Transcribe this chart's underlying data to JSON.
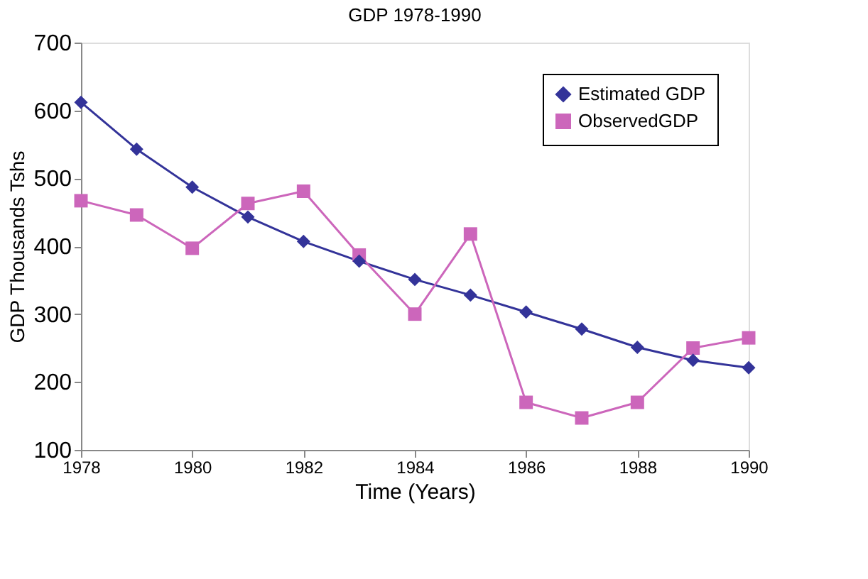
{
  "chart_data": {
    "type": "line",
    "title": "GDP 1978-1990",
    "xlabel": "Time (Years)",
    "ylabel": "GDP Thousands Tshs",
    "x": [
      1978,
      1979,
      1980,
      1981,
      1982,
      1983,
      1984,
      1985,
      1986,
      1987,
      1988,
      1989,
      1990
    ],
    "series": [
      {
        "name": "Estimated GDP",
        "color": "#333399",
        "marker": "diamond",
        "values": [
          612,
          543,
          487,
          443,
          407,
          378,
          351,
          328,
          303,
          278,
          251,
          232,
          221
        ]
      },
      {
        "name": "ObservedGDP",
        "color": "#cc66bb",
        "marker": "square",
        "values": [
          467,
          446,
          397,
          463,
          481,
          387,
          300,
          418,
          170,
          147,
          170,
          250,
          265
        ]
      }
    ],
    "xlim": [
      1978,
      1990
    ],
    "xticks": [
      1978,
      1980,
      1982,
      1984,
      1986,
      1988,
      1990
    ],
    "ylim": [
      100,
      700
    ],
    "yticks": [
      100,
      200,
      300,
      400,
      500,
      600,
      700
    ],
    "grid": false,
    "legend": "top right",
    "line_style": "solid"
  }
}
